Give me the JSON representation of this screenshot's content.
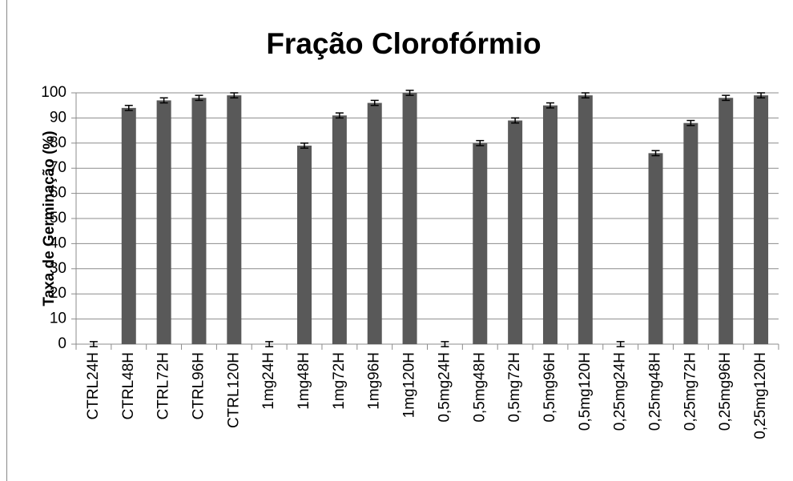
{
  "chart_data": {
    "type": "bar",
    "title": "Fração Clorofórmio",
    "ylabel": "Taxa de Germinação (%)",
    "categories": [
      "CTRL24H",
      "CTRL48H",
      "CTRL72H",
      "CTRL96H",
      "CTRL120H",
      "1mg24H",
      "1mg48H",
      "1mg72H",
      "1mg96H",
      "1mg120H",
      "0,5mg24H",
      "0,5mg48H",
      "0,5mg72H",
      "0,5mg96H",
      "0,5mg120H",
      "0,25mg24H",
      "0,25mg48H",
      "0,25mg72H",
      "0,25mg96H",
      "0,25mg120H"
    ],
    "values": [
      0,
      94,
      97,
      98,
      99,
      0,
      79,
      91,
      96,
      100,
      0,
      80,
      89,
      95,
      99,
      0,
      76,
      88,
      98,
      99
    ],
    "errors": [
      1,
      1,
      1,
      1,
      1,
      1,
      1,
      1,
      1,
      1,
      1,
      1,
      1,
      1,
      1,
      1,
      1,
      1,
      1,
      1
    ],
    "color": "#595959",
    "ylim": [
      0,
      100
    ],
    "yticks": [
      0,
      10,
      20,
      30,
      40,
      50,
      60,
      70,
      80,
      90,
      100
    ],
    "grid": true
  }
}
